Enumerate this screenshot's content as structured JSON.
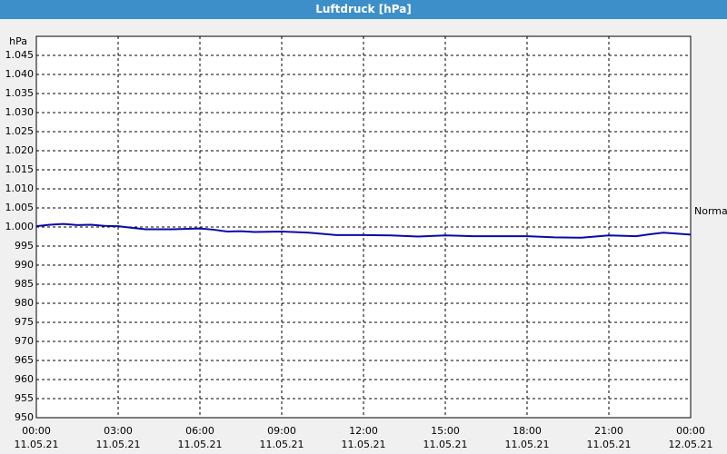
{
  "chart_data": {
    "type": "line",
    "title": "Luftdruck [hPa]",
    "y_unit": "hPa",
    "annotation": "Normal",
    "x": [
      0,
      0.5,
      1,
      1.5,
      2,
      2.5,
      3,
      3.5,
      4,
      5,
      6,
      6.5,
      7,
      7.5,
      8,
      9,
      10,
      11,
      12,
      13,
      14,
      15,
      16,
      17,
      18,
      19,
      20,
      21,
      22,
      22.5,
      23,
      24
    ],
    "series": [
      {
        "name": "Luftdruck",
        "color": "#0a0aa8",
        "values": [
          1000.2,
          1000.6,
          1000.8,
          1000.5,
          1000.6,
          1000.3,
          1000.2,
          999.8,
          999.4,
          999.4,
          999.6,
          999.3,
          998.8,
          998.9,
          998.7,
          998.8,
          998.5,
          997.9,
          997.9,
          997.8,
          997.5,
          997.8,
          997.6,
          997.6,
          997.6,
          997.3,
          997.2,
          997.8,
          997.6,
          998.1,
          998.5,
          998.0
        ]
      }
    ],
    "xlim": [
      0,
      24
    ],
    "xticks": [
      {
        "value": 0,
        "label": "00:00",
        "date": "11.05.21"
      },
      {
        "value": 3,
        "label": "03:00",
        "date": "11.05.21"
      },
      {
        "value": 6,
        "label": "06:00",
        "date": "11.05.21"
      },
      {
        "value": 9,
        "label": "09:00",
        "date": "11.05.21"
      },
      {
        "value": 12,
        "label": "12:00",
        "date": "11.05.21"
      },
      {
        "value": 15,
        "label": "15:00",
        "date": "11.05.21"
      },
      {
        "value": 18,
        "label": "18:00",
        "date": "11.05.21"
      },
      {
        "value": 21,
        "label": "21:00",
        "date": "11.05.21"
      },
      {
        "value": 24,
        "label": "00:00",
        "date": "12.05.21"
      }
    ],
    "ylim": [
      950,
      1050
    ],
    "yticks": [
      950,
      955,
      960,
      965,
      970,
      975,
      980,
      985,
      990,
      995,
      {
        "value": 1000,
        "label": "1.000"
      },
      {
        "value": 1005,
        "label": "1.005"
      },
      {
        "value": 1010,
        "label": "1.010"
      },
      {
        "value": 1015,
        "label": "1.015"
      },
      {
        "value": 1020,
        "label": "1.020"
      },
      {
        "value": 1025,
        "label": "1.025"
      },
      {
        "value": 1030,
        "label": "1.030"
      },
      {
        "value": 1035,
        "label": "1.035"
      },
      {
        "value": 1040,
        "label": "1.040"
      },
      {
        "value": 1045,
        "label": "1.045"
      }
    ],
    "grid": true
  }
}
